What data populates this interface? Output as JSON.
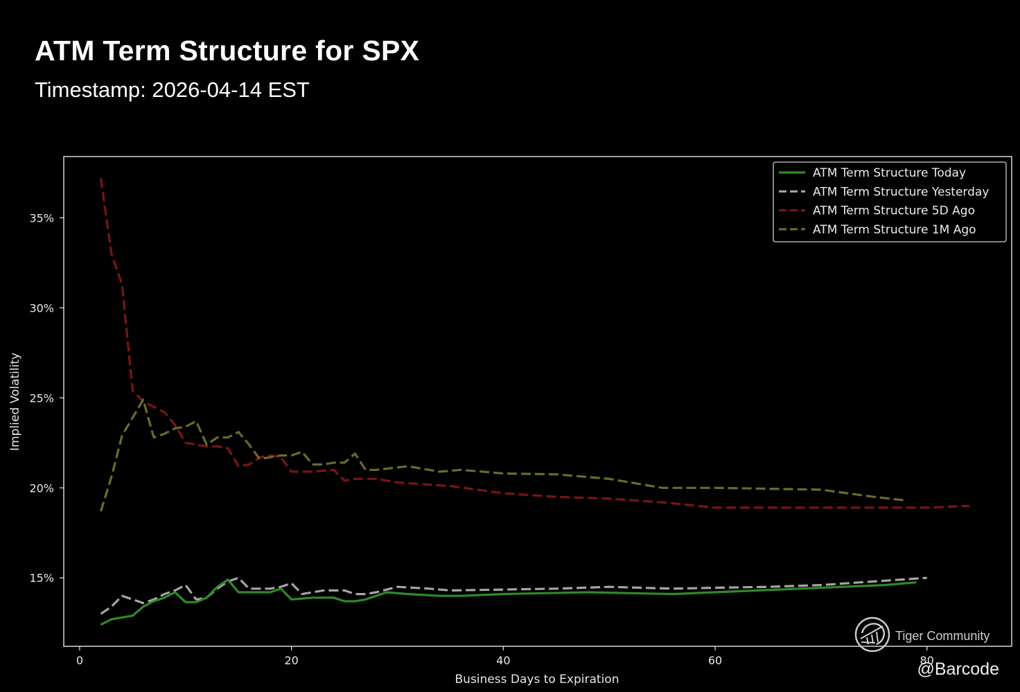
{
  "header": {
    "title": "ATM Term Structure for SPX",
    "subtitle": "Timestamp: 2026-04-14 EST"
  },
  "watermark": {
    "text": "Tiger Community",
    "credit": "@Barcode"
  },
  "chart_data": {
    "type": "line",
    "xlabel": "Business Days to Expiration",
    "ylabel": "Implied Volatility",
    "xlim": [
      -1.5,
      88
    ],
    "ylim": [
      11.2,
      38.4
    ],
    "xticks": [
      0,
      20,
      40,
      60,
      80
    ],
    "yticks": [
      15,
      20,
      25,
      30,
      35
    ],
    "ytick_suffix": "%",
    "grid": false,
    "legend_position": "top-right",
    "series": [
      {
        "name": "ATM Term Structure Today",
        "color": "#2f8a28",
        "dash": "solid",
        "x": [
          2,
          3,
          5,
          6,
          7,
          8,
          9,
          10,
          11,
          12,
          13,
          14,
          15,
          16,
          17,
          18,
          19,
          20,
          22,
          24,
          25,
          26,
          27,
          28,
          29,
          31,
          34,
          36,
          40,
          44,
          48,
          52,
          56,
          60,
          64,
          68,
          72,
          76,
          79
        ],
        "y": [
          12.4,
          12.7,
          12.9,
          13.4,
          13.7,
          13.9,
          14.2,
          13.65,
          13.65,
          13.9,
          14.5,
          14.9,
          14.2,
          14.2,
          14.2,
          14.2,
          14.4,
          13.8,
          13.9,
          13.9,
          13.7,
          13.7,
          13.8,
          14.0,
          14.2,
          14.1,
          14.0,
          14.0,
          14.1,
          14.15,
          14.2,
          14.15,
          14.1,
          14.2,
          14.3,
          14.4,
          14.5,
          14.6,
          14.75
        ]
      },
      {
        "name": "ATM Term Structure Yesterday",
        "color": "#a5a5a5",
        "dash": "dashed",
        "x": [
          2,
          3,
          4,
          6,
          7,
          8,
          9,
          10,
          11,
          12,
          13,
          14,
          15,
          16,
          18,
          19,
          20,
          21,
          23,
          25,
          26,
          27,
          28,
          30,
          33,
          35,
          40,
          45,
          50,
          56,
          60,
          65,
          70,
          75,
          80
        ],
        "y": [
          13.0,
          13.4,
          14.0,
          13.6,
          13.8,
          14.1,
          14.3,
          14.6,
          13.8,
          13.9,
          14.4,
          14.8,
          15.0,
          14.4,
          14.4,
          14.5,
          14.7,
          14.1,
          14.3,
          14.3,
          14.1,
          14.1,
          14.2,
          14.5,
          14.4,
          14.3,
          14.35,
          14.4,
          14.5,
          14.4,
          14.45,
          14.5,
          14.6,
          14.8,
          15.0
        ]
      },
      {
        "name": "ATM Term Structure 5D Ago",
        "color": "#7a1515",
        "dash": "dashed",
        "x": [
          2,
          3,
          4,
          5,
          6,
          7,
          8,
          9,
          10,
          11,
          12,
          13,
          14,
          15,
          16,
          17,
          18,
          19,
          20,
          22,
          24,
          25,
          26,
          27,
          28,
          30,
          35,
          40,
          45,
          50,
          55,
          60,
          65,
          70,
          75,
          80,
          84
        ],
        "y": [
          37.2,
          33.0,
          31.3,
          25.4,
          24.8,
          24.5,
          24.2,
          23.5,
          22.5,
          22.4,
          22.3,
          22.3,
          22.2,
          21.2,
          21.3,
          21.7,
          21.8,
          21.7,
          20.9,
          20.9,
          21.0,
          20.4,
          20.5,
          20.5,
          20.5,
          20.3,
          20.1,
          19.7,
          19.5,
          19.4,
          19.2,
          18.9,
          18.9,
          18.9,
          18.9,
          18.9,
          19.0
        ]
      },
      {
        "name": "ATM Term Structure 1M Ago",
        "color": "#6b6b2a",
        "dash": "dashed",
        "x": [
          2,
          3,
          4,
          5,
          6,
          7,
          8,
          9,
          10,
          11,
          12,
          13,
          14,
          15,
          16,
          17,
          18,
          19,
          20,
          21,
          22,
          23,
          24,
          25,
          26,
          27,
          28,
          31,
          34,
          36,
          40,
          45,
          50,
          55,
          60,
          65,
          70,
          75,
          78
        ],
        "y": [
          18.7,
          20.6,
          22.9,
          23.9,
          24.9,
          22.8,
          23.0,
          23.3,
          23.4,
          23.7,
          22.4,
          22.8,
          22.8,
          23.1,
          22.4,
          21.6,
          21.7,
          21.8,
          21.8,
          22.0,
          21.3,
          21.3,
          21.4,
          21.4,
          21.9,
          21.0,
          21.0,
          21.2,
          20.9,
          21.0,
          20.8,
          20.75,
          20.5,
          20.0,
          20.0,
          19.95,
          19.9,
          19.5,
          19.3
        ]
      }
    ]
  }
}
